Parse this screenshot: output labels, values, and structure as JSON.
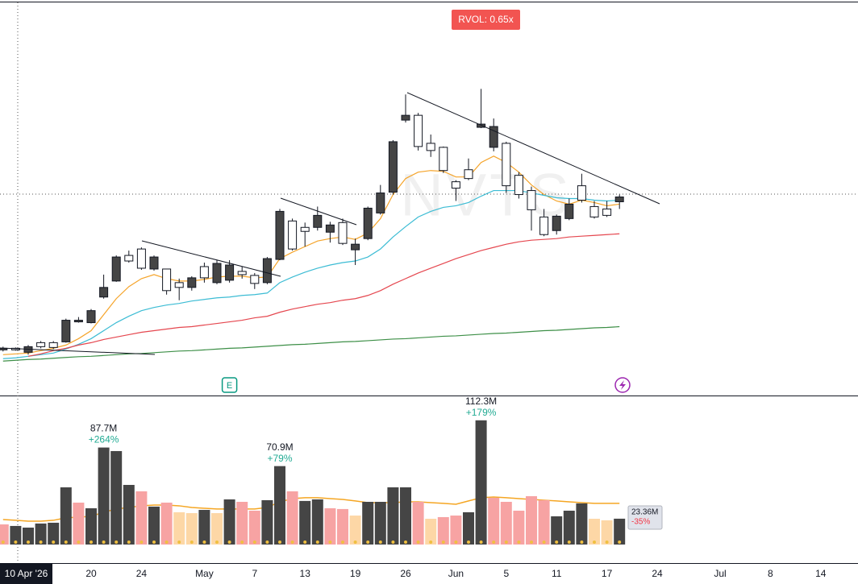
{
  "chart_data": {
    "type": "candlestick",
    "watermark": "NVTS",
    "badge": "RVOL: 0.65x",
    "categories": [
      null,
      null,
      "10 Apr '26",
      null,
      null,
      null,
      null,
      "20",
      null,
      null,
      null,
      "24",
      null,
      null,
      null,
      null,
      "May",
      null,
      null,
      null,
      "7",
      null,
      null,
      null,
      "13",
      null,
      null,
      null,
      "19",
      null,
      null,
      null,
      "26",
      null,
      null,
      null,
      "Jun",
      null,
      null,
      null,
      "5",
      null,
      null,
      null,
      "11",
      null,
      null,
      null,
      "17",
      null,
      null,
      null,
      "24",
      null,
      null,
      null,
      null,
      "Jul",
      null,
      null,
      null,
      "8",
      null,
      null,
      null,
      "14"
    ],
    "events": [
      null,
      null,
      null,
      null,
      null,
      null,
      null,
      null,
      null,
      null,
      null,
      null,
      null,
      null,
      null,
      null,
      null,
      null,
      "E",
      null,
      null,
      null,
      null,
      null,
      null,
      null,
      null,
      null,
      null,
      null,
      null,
      null,
      null,
      null,
      null,
      null,
      null,
      null,
      null,
      null,
      null,
      null,
      null,
      null,
      null,
      null,
      null,
      null,
      null,
      null,
      null,
      null,
      null,
      null,
      null,
      null,
      null,
      null,
      null,
      null,
      null,
      null,
      null,
      null,
      null,
      null
    ],
    "ylim": [
      0,
      98
    ],
    "up_color": "#454545",
    "down_color": "#ffffff",
    "open": [
      11.2,
      11.6,
      10.6,
      13.0,
      13.0,
      13.2,
      18.2,
      18.0,
      24.4,
      28.4,
      34.8,
      36.4,
      31.4,
      31.4,
      28.0,
      26.8,
      32.0,
      28.0,
      28.6,
      30.8,
      29.8,
      28.0,
      33.8,
      43.4,
      41.8,
      41.8,
      40.6,
      43.0,
      36.2,
      39.0,
      45.4,
      50.6,
      68.6,
      69.8,
      62.8,
      61.8,
      53.2,
      56.2,
      66.8,
      61.8,
      62.8,
      54.8,
      51.0,
      44.4,
      41.0,
      44.0,
      52.2,
      47.0,
      46.4,
      48.2,
      null,
      null,
      null,
      null,
      null,
      null,
      null,
      null,
      null,
      null,
      null,
      null,
      null,
      null,
      null,
      null
    ],
    "high": [
      12.0,
      11.8,
      12.4,
      13.4,
      13.4,
      19.0,
      19.4,
      21.4,
      30.0,
      34.8,
      36.0,
      36.8,
      34.8,
      31.4,
      29.0,
      29.6,
      33.0,
      33.6,
      33.6,
      32.0,
      30.4,
      34.4,
      46.4,
      44.0,
      43.0,
      47.0,
      43.2,
      44.0,
      39.0,
      47.0,
      52.4,
      63.6,
      75.0,
      70.4,
      65.0,
      62.0,
      53.6,
      59.0,
      76.4,
      69.0,
      63.2,
      55.6,
      52.0,
      46.4,
      45.0,
      49.0,
      55.2,
      48.4,
      48.4,
      50.0,
      null,
      null,
      null,
      null,
      null,
      null,
      null,
      null,
      null,
      null,
      null,
      null,
      null,
      null,
      null,
      null
    ],
    "low": [
      10.8,
      11.0,
      10.0,
      11.6,
      11.4,
      13.0,
      18.0,
      17.8,
      24.0,
      28.2,
      33.0,
      31.2,
      31.0,
      25.0,
      23.6,
      26.0,
      28.0,
      27.6,
      28.0,
      29.0,
      26.4,
      27.6,
      33.6,
      36.0,
      37.0,
      41.0,
      38.0,
      37.4,
      32.4,
      38.6,
      45.0,
      50.0,
      68.0,
      61.0,
      59.4,
      55.4,
      48.4,
      53.6,
      66.6,
      60.8,
      50.4,
      49.0,
      41.0,
      39.6,
      40.0,
      43.6,
      48.0,
      44.0,
      44.4,
      46.4,
      null,
      null,
      null,
      null,
      null,
      null,
      null,
      null,
      null,
      null,
      null,
      null,
      null,
      null,
      null,
      null
    ],
    "close": [
      11.6,
      11.2,
      12.0,
      12.0,
      11.8,
      18.6,
      18.6,
      21.0,
      26.8,
      34.4,
      33.4,
      31.6,
      34.4,
      26.0,
      26.8,
      29.2,
      29.2,
      32.8,
      32.4,
      30.0,
      27.8,
      34.0,
      45.8,
      36.4,
      40.8,
      44.8,
      42.4,
      37.8,
      37.6,
      46.6,
      50.4,
      63.2,
      69.8,
      62.0,
      61.0,
      56.0,
      51.6,
      54.0,
      67.6,
      67.0,
      52.2,
      50.0,
      46.2,
      40.0,
      44.6,
      47.6,
      48.6,
      44.4,
      44.8,
      49.4,
      null,
      null,
      null,
      null,
      null,
      null,
      null,
      null,
      null,
      null,
      null,
      null,
      null,
      null,
      null,
      null
    ],
    "series": [
      {
        "color": "#f5a42a",
        "values": [
          10,
          10.2,
          10.4,
          11,
          11.6,
          12.4,
          14,
          16,
          20,
          24,
          27,
          29,
          30,
          29,
          28.4,
          28.4,
          28.8,
          29.4,
          29.6,
          29.6,
          29.2,
          29.4,
          34,
          35.6,
          37,
          38.4,
          39,
          39.4,
          38.8,
          40.4,
          44,
          50,
          54,
          55.6,
          56,
          55.8,
          54.4,
          54.4,
          58,
          59.6,
          58,
          55.6,
          52.4,
          50,
          48.4,
          47.6,
          48.6,
          48,
          47.2,
          47.6,
          null,
          null,
          null,
          null,
          null,
          null,
          null,
          null,
          null,
          null,
          null,
          null,
          null,
          null,
          null,
          null
        ]
      },
      {
        "color": "#3cbcd4",
        "values": [
          9,
          9.2,
          9.6,
          10,
          10.4,
          11.4,
          12.6,
          14,
          16,
          18,
          19.6,
          21,
          21.8,
          22.4,
          22.8,
          23.4,
          23.8,
          24.2,
          24.4,
          24.8,
          25,
          25.4,
          28,
          29.4,
          30.6,
          31.6,
          32.4,
          33,
          33.4,
          34.4,
          36.4,
          39.4,
          42,
          44.4,
          45.8,
          46.8,
          47.2,
          48,
          49.6,
          51,
          51,
          51,
          50.4,
          49.8,
          49.2,
          49,
          49,
          48.6,
          48.4,
          48.6,
          null,
          null,
          null,
          null,
          null,
          null,
          null,
          null,
          null,
          null,
          null,
          null,
          null,
          null,
          null,
          null
        ]
      },
      {
        "color": "#e5474f",
        "values": [
          null,
          null,
          9.6,
          10.2,
          11,
          11.6,
          12.4,
          13,
          13.8,
          14.4,
          15,
          15.6,
          16,
          16.4,
          16.8,
          17,
          17.4,
          17.8,
          18.2,
          18.6,
          19.2,
          19.6,
          20.6,
          21.4,
          22,
          22.6,
          23,
          23.6,
          24,
          24.8,
          26,
          27.6,
          29,
          30.4,
          31.6,
          32.8,
          34,
          35,
          36,
          36.8,
          37.6,
          38.2,
          38.6,
          38.8,
          39,
          39.4,
          39.6,
          39.8,
          40,
          40.2,
          null,
          null,
          null,
          null,
          null,
          null,
          null,
          null,
          null,
          null,
          null,
          null,
          null,
          null,
          null,
          null
        ]
      },
      {
        "color": "#3d8f47",
        "values": [
          8.4,
          8.6,
          8.8,
          8.9,
          9.1,
          9.3,
          9.5,
          9.6,
          9.8,
          10.0,
          10.2,
          10.3,
          10.5,
          10.7,
          10.9,
          11.0,
          11.2,
          11.4,
          11.6,
          11.7,
          11.9,
          12.1,
          12.3,
          12.5,
          12.6,
          12.8,
          13.0,
          13.2,
          13.3,
          13.5,
          13.7,
          13.9,
          14.0,
          14.2,
          14.4,
          14.6,
          14.7,
          14.9,
          15.1,
          15.3,
          15.4,
          15.6,
          15.8,
          16.0,
          16.1,
          16.3,
          16.5,
          16.7,
          16.8,
          17.0,
          null,
          null,
          null,
          null,
          null,
          null,
          null,
          null,
          null,
          null,
          null,
          null,
          null,
          null,
          null,
          null
        ]
      }
    ],
    "volume": {
      "ylim": [
        0,
        134
      ],
      "values": [
        18.2,
        16.8,
        15.3,
        19.0,
        19.7,
        51.7,
        37.9,
        32.8,
        87.7,
        84.5,
        53.9,
        48.1,
        34.3,
        37.9,
        29.2,
        28.4,
        31.3,
        28.4,
        40.8,
        38.6,
        30.6,
        40.1,
        70.9,
        48.1,
        39.4,
        40.8,
        32.8,
        32.1,
        26.2,
        38.6,
        38.6,
        51.7,
        51.7,
        38.6,
        23.3,
        24.8,
        26.2,
        29.2,
        112.3,
        42.3,
        38.6,
        30.6,
        43.7,
        40.1,
        25.5,
        30.6,
        37.2,
        23.3,
        21.9,
        23.36,
        null,
        null,
        null,
        null,
        null,
        null,
        null,
        null,
        null,
        null,
        null,
        null,
        null,
        null,
        null,
        null
      ],
      "colors": [
        "#f7a3a3",
        "#454545",
        "#454545",
        "#454545",
        "#454545",
        "#454545",
        "#f7a3a3",
        "#454545",
        "#454545",
        "#454545",
        "#454545",
        "#f7a3a3",
        "#454545",
        "#f7a3a3",
        "#fdd7a6",
        "#fdd7a6",
        "#454545",
        "#fdd7a6",
        "#454545",
        "#f7a3a3",
        "#f7a3a3",
        "#454545",
        "#454545",
        "#f7a3a3",
        "#454545",
        "#454545",
        "#f7a3a3",
        "#f7a3a3",
        "#fdd7a6",
        "#454545",
        "#454545",
        "#454545",
        "#454545",
        "#f7a3a3",
        "#fdd7a6",
        "#f7a3a3",
        "#f7a3a3",
        "#454545",
        "#454545",
        "#f7a3a3",
        "#f7a3a3",
        "#f7a3a3",
        "#f7a3a3",
        "#f7a3a3",
        "#454545",
        "#454545",
        "#454545",
        "#fdd7a6",
        "#fdd7a6",
        "#454545",
        null,
        null,
        null,
        null,
        null,
        null,
        null,
        null,
        null,
        null,
        null,
        null,
        null,
        null,
        null,
        null
      ],
      "value_labels": [
        null,
        null,
        null,
        null,
        null,
        null,
        null,
        null,
        "87.7M",
        null,
        null,
        null,
        null,
        null,
        null,
        null,
        null,
        null,
        null,
        null,
        null,
        null,
        "70.9M",
        null,
        null,
        null,
        null,
        null,
        null,
        null,
        null,
        null,
        null,
        null,
        null,
        null,
        null,
        null,
        "112.3M",
        null,
        null,
        null,
        null,
        null,
        null,
        null,
        null,
        null,
        null,
        "23.36M",
        null,
        null,
        null,
        null,
        null,
        null,
        null,
        null,
        null,
        null,
        null,
        null,
        null,
        null,
        null,
        null
      ],
      "change_labels": [
        null,
        null,
        null,
        null,
        null,
        null,
        null,
        null,
        "+264%",
        null,
        null,
        null,
        null,
        null,
        null,
        null,
        null,
        null,
        null,
        null,
        null,
        null,
        "+79%",
        null,
        null,
        null,
        null,
        null,
        null,
        null,
        null,
        null,
        null,
        null,
        null,
        null,
        null,
        null,
        "+179%",
        null,
        null,
        null,
        null,
        null,
        null,
        null,
        null,
        null,
        null,
        "-35%",
        null,
        null,
        null,
        null,
        null,
        null,
        null,
        null,
        null,
        null,
        null,
        null,
        null,
        null,
        null,
        null
      ],
      "average": {
        "color": "#f5a623",
        "values": [
          22.6,
          21.9,
          21.1,
          21.1,
          21.9,
          24.1,
          24.8,
          25.5,
          29.2,
          32.1,
          33.5,
          35.0,
          35.7,
          35.7,
          35.0,
          33.5,
          32.8,
          32.1,
          32.1,
          32.1,
          32.1,
          33.5,
          38.6,
          41.5,
          42.3,
          42.3,
          41.5,
          40.8,
          39.4,
          37.9,
          37.9,
          37.9,
          38.6,
          38.6,
          37.9,
          37.2,
          36.4,
          39.4,
          42.3,
          43.0,
          42.3,
          41.5,
          40.8,
          40.1,
          39.4,
          38.6,
          37.9,
          37.2,
          37.2,
          37.2,
          null,
          null,
          null,
          null,
          null,
          null,
          null,
          null,
          null,
          null,
          null,
          null,
          null,
          null,
          null,
          null
        ]
      }
    }
  }
}
